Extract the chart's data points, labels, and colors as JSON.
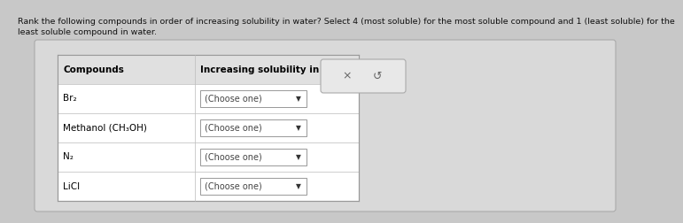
{
  "title_line1": "Rank the following compounds in order of increasing solubility in water? Select 4 (most soluble) for the most soluble compound and 1 (least soluble) for the",
  "title_line2": "least soluble compound in water.",
  "bg_color": "#c8c8c8",
  "card_color": "#d9d9d9",
  "table_bg": "#ffffff",
  "header_bg": "#e8e8e8",
  "compounds": [
    "Br₂",
    "Methanol (CH₃OH)",
    "N₂",
    "LiCl"
  ],
  "col1_header": "Compounds",
  "col2_header": "Increasing solubility in water",
  "dropdown_text": "(Choose one)",
  "button_x": "×",
  "button_undo": "↺",
  "title_fontsize": 6.8,
  "header_fontsize": 7.5,
  "cell_fontsize": 7.5,
  "dropdown_fontsize": 7.0,
  "arrow_fontsize": 5.5
}
